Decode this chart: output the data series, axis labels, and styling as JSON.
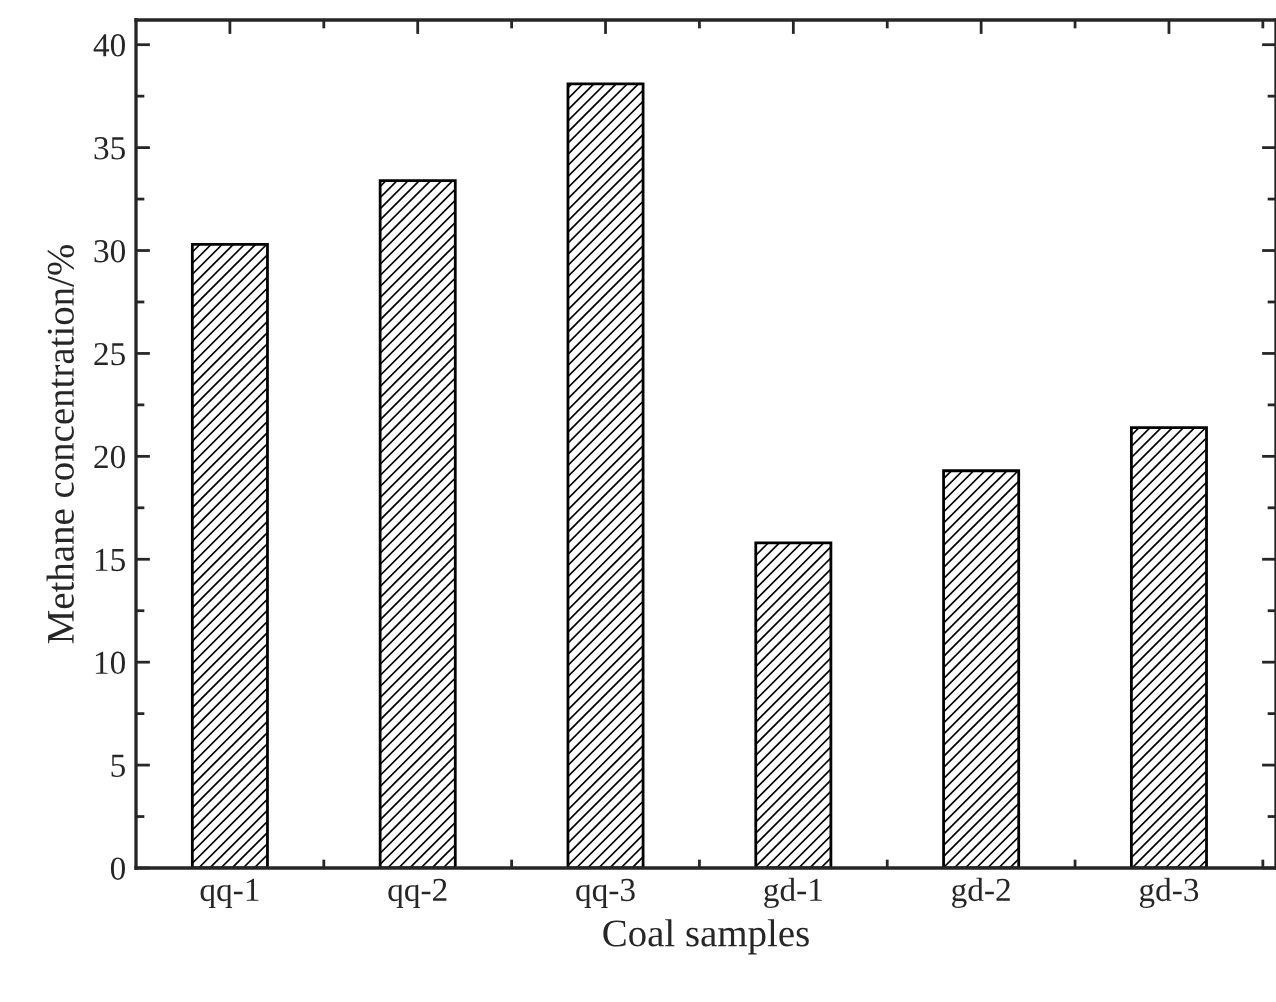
{
  "chart_data": {
    "type": "bar",
    "xlabel": "Coal samples",
    "ylabel": "Methane concentration/%",
    "categories": [
      "qq-1",
      "qq-2",
      "qq-3",
      "gd-1",
      "gd-2",
      "gd-3"
    ],
    "values": [
      30.3,
      33.4,
      38.1,
      15.8,
      19.3,
      21.4
    ],
    "color": "#000000",
    "ylim": [
      0,
      41.2
    ],
    "yticks": [
      0,
      5,
      10,
      15,
      20,
      25,
      30,
      35,
      40
    ],
    "grid": false,
    "legend": false
  }
}
